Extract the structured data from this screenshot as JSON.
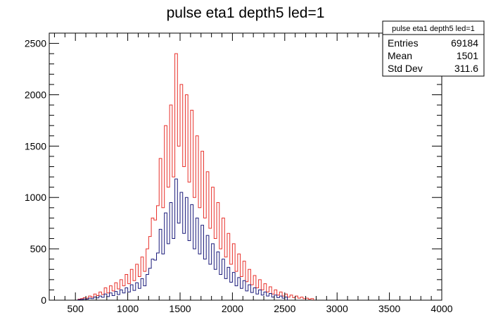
{
  "chart_data": {
    "type": "histogram",
    "title": "pulse eta1 depth5 led=1",
    "xlabel": "",
    "ylabel": "",
    "xlim": [
      250,
      4000
    ],
    "ylim": [
      0,
      2600
    ],
    "x_ticks": [
      500,
      1000,
      1500,
      2000,
      2500,
      3000,
      3500,
      4000
    ],
    "y_ticks": [
      0,
      500,
      1000,
      1500,
      2000,
      2500
    ],
    "bin_width": 25,
    "bin_start": 250,
    "grid": false,
    "legend_position": "top-right",
    "stats_box": {
      "title": "pulse eta1 depth5 led=1",
      "rows": [
        {
          "label": "Entries",
          "value": "69184"
        },
        {
          "label": "Mean",
          "value": "1501"
        },
        {
          "label": "Std Dev",
          "value": "311.6"
        }
      ]
    },
    "series": [
      {
        "color": "#e8302a",
        "bins": [
          [
            525,
            10
          ],
          [
            550,
            15
          ],
          [
            575,
            25
          ],
          [
            600,
            20
          ],
          [
            625,
            40
          ],
          [
            650,
            30
          ],
          [
            675,
            60
          ],
          [
            700,
            45
          ],
          [
            725,
            80
          ],
          [
            750,
            55
          ],
          [
            775,
            120
          ],
          [
            800,
            70
          ],
          [
            825,
            140
          ],
          [
            850,
            90
          ],
          [
            875,
            170
          ],
          [
            900,
            110
          ],
          [
            925,
            200
          ],
          [
            950,
            140
          ],
          [
            975,
            250
          ],
          [
            1000,
            160
          ],
          [
            1025,
            300
          ],
          [
            1050,
            190
          ],
          [
            1075,
            350
          ],
          [
            1100,
            230
          ],
          [
            1125,
            420
          ],
          [
            1150,
            280
          ],
          [
            1175,
            500
          ],
          [
            1200,
            620
          ],
          [
            1225,
            800
          ],
          [
            1250,
            780
          ],
          [
            1275,
            920
          ],
          [
            1300,
            1380
          ],
          [
            1325,
            900
          ],
          [
            1350,
            1700
          ],
          [
            1375,
            1100
          ],
          [
            1400,
            1900
          ],
          [
            1425,
            1200
          ],
          [
            1450,
            2400
          ],
          [
            1475,
            1500
          ],
          [
            1500,
            2100
          ],
          [
            1525,
            1300
          ],
          [
            1550,
            2000
          ],
          [
            1575,
            1150
          ],
          [
            1600,
            1850
          ],
          [
            1625,
            1000
          ],
          [
            1650,
            1600
          ],
          [
            1675,
            900
          ],
          [
            1700,
            1450
          ],
          [
            1725,
            800
          ],
          [
            1750,
            1250
          ],
          [
            1775,
            700
          ],
          [
            1800,
            1100
          ],
          [
            1825,
            600
          ],
          [
            1850,
            950
          ],
          [
            1875,
            500
          ],
          [
            1900,
            800
          ],
          [
            1925,
            420
          ],
          [
            1950,
            650
          ],
          [
            1975,
            350
          ],
          [
            2000,
            550
          ],
          [
            2025,
            280
          ],
          [
            2050,
            450
          ],
          [
            2075,
            230
          ],
          [
            2100,
            380
          ],
          [
            2125,
            180
          ],
          [
            2150,
            300
          ],
          [
            2175,
            150
          ],
          [
            2200,
            240
          ],
          [
            2225,
            120
          ],
          [
            2250,
            200
          ],
          [
            2275,
            100
          ],
          [
            2300,
            160
          ],
          [
            2325,
            80
          ],
          [
            2350,
            130
          ],
          [
            2375,
            60
          ],
          [
            2400,
            100
          ],
          [
            2425,
            50
          ],
          [
            2450,
            80
          ],
          [
            2475,
            40
          ],
          [
            2500,
            60
          ],
          [
            2525,
            30
          ],
          [
            2550,
            50
          ],
          [
            2575,
            25
          ],
          [
            2600,
            40
          ],
          [
            2625,
            20
          ],
          [
            2650,
            30
          ],
          [
            2675,
            15
          ],
          [
            2700,
            20
          ],
          [
            2725,
            10
          ],
          [
            2750,
            15
          ]
        ]
      },
      {
        "color": "#1a1a7a",
        "bins": [
          [
            525,
            5
          ],
          [
            550,
            8
          ],
          [
            575,
            12
          ],
          [
            600,
            10
          ],
          [
            625,
            20
          ],
          [
            650,
            15
          ],
          [
            675,
            30
          ],
          [
            700,
            22
          ],
          [
            725,
            40
          ],
          [
            750,
            28
          ],
          [
            775,
            60
          ],
          [
            800,
            35
          ],
          [
            825,
            70
          ],
          [
            850,
            45
          ],
          [
            875,
            85
          ],
          [
            900,
            55
          ],
          [
            925,
            100
          ],
          [
            950,
            70
          ],
          [
            975,
            120
          ],
          [
            1000,
            80
          ],
          [
            1025,
            150
          ],
          [
            1050,
            95
          ],
          [
            1075,
            170
          ],
          [
            1100,
            115
          ],
          [
            1125,
            210
          ],
          [
            1150,
            140
          ],
          [
            1175,
            250
          ],
          [
            1200,
            310
          ],
          [
            1225,
            400
          ],
          [
            1250,
            390
          ],
          [
            1275,
            460
          ],
          [
            1300,
            690
          ],
          [
            1325,
            450
          ],
          [
            1350,
            850
          ],
          [
            1375,
            550
          ],
          [
            1400,
            950
          ],
          [
            1425,
            600
          ],
          [
            1450,
            1180
          ],
          [
            1475,
            750
          ],
          [
            1500,
            1050
          ],
          [
            1525,
            650
          ],
          [
            1550,
            1000
          ],
          [
            1575,
            580
          ],
          [
            1600,
            930
          ],
          [
            1625,
            500
          ],
          [
            1650,
            800
          ],
          [
            1675,
            450
          ],
          [
            1700,
            730
          ],
          [
            1725,
            400
          ],
          [
            1750,
            630
          ],
          [
            1775,
            350
          ],
          [
            1800,
            550
          ],
          [
            1825,
            300
          ],
          [
            1850,
            470
          ],
          [
            1875,
            250
          ],
          [
            1900,
            400
          ],
          [
            1925,
            210
          ],
          [
            1950,
            320
          ],
          [
            1975,
            175
          ],
          [
            2000,
            270
          ],
          [
            2025,
            140
          ],
          [
            2050,
            220
          ],
          [
            2075,
            115
          ],
          [
            2100,
            190
          ],
          [
            2125,
            90
          ],
          [
            2150,
            150
          ],
          [
            2175,
            75
          ],
          [
            2200,
            120
          ],
          [
            2225,
            60
          ],
          [
            2250,
            100
          ],
          [
            2275,
            50
          ],
          [
            2300,
            80
          ],
          [
            2325,
            40
          ],
          [
            2350,
            65
          ],
          [
            2375,
            30
          ],
          [
            2400,
            50
          ],
          [
            2425,
            25
          ],
          [
            2450,
            40
          ],
          [
            2475,
            20
          ],
          [
            2500,
            30
          ]
        ]
      }
    ]
  }
}
